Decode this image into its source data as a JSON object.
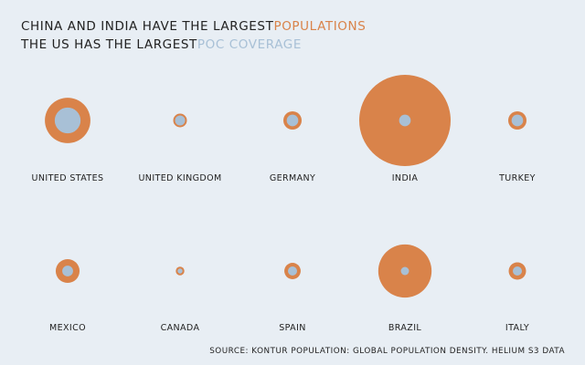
{
  "title": {
    "line1_prefix": "CHINA AND INDIA HAVE THE LARGEST",
    "line1_highlight": "POPULATIONS",
    "line2_prefix": "THE US HAS THE LARGEST",
    "line2_highlight": "POC COVERAGE"
  },
  "colors": {
    "population": "#d9834a",
    "poc_coverage": "#a8c0d6",
    "background": "#e8eef4"
  },
  "source": "SOURCE: KONTUR POPULATION: GLOBAL POPULATION DENSITY. HELIUM S3 DATA",
  "chart_data": {
    "type": "bubble",
    "series": [
      {
        "key": "population"
      },
      {
        "key": "poc_coverage"
      }
    ],
    "categories": [
      "UNITED STATES",
      "UNITED KINGDOM",
      "GERMANY",
      "INDIA",
      "TURKEY",
      "MEXICO",
      "CANADA",
      "SPAIN",
      "BRAZIL",
      "ITALY"
    ],
    "population": [
      620,
      56,
      100,
      2500,
      100,
      170,
      22,
      80,
      850,
      90
    ],
    "poc_coverage": [
      200,
      48,
      40,
      40,
      40,
      35,
      18,
      25,
      20,
      25
    ]
  }
}
